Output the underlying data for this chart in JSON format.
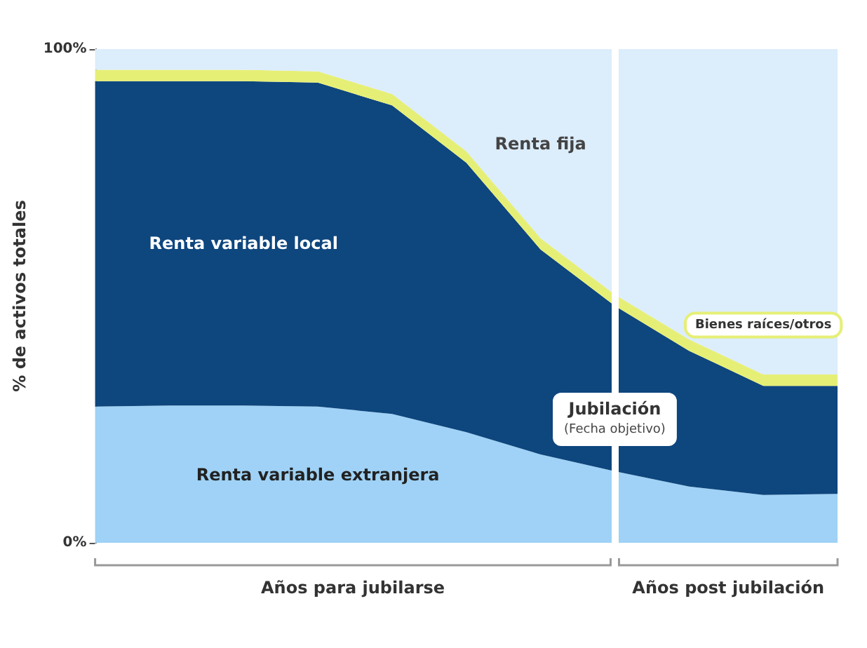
{
  "chart_data": {
    "type": "area",
    "stacked": true,
    "ylabel": "% de activos totales",
    "categories": [
      null,
      null,
      null,
      null,
      null,
      null,
      null,
      null,
      null,
      null,
      null
    ],
    "tick_labels": "y",
    "ylim": [
      0,
      100
    ],
    "yticks": [
      {
        "value": 0,
        "label": "0%"
      },
      {
        "value": 100,
        "label": "100%"
      }
    ],
    "series": [
      {
        "name": "Renta variable extranjera",
        "color": "#9fd2f6",
        "values": [
          27.6,
          27.8,
          27.8,
          27.6,
          26.1,
          22.4,
          17.9,
          14.5,
          11.4,
          9.7,
          9.9
        ]
      },
      {
        "name": "Renta variable local",
        "color": "#0e467e",
        "values": [
          65.9,
          65.7,
          65.7,
          65.6,
          62.5,
          54.6,
          41.5,
          33.5,
          27.5,
          22.1,
          21.9
        ]
      },
      {
        "name": "Bienes raíces/otros",
        "color": "#e6ef75",
        "values": [
          2.3,
          2.3,
          2.3,
          2.3,
          2.3,
          2.3,
          2.3,
          2.3,
          2.3,
          2.3,
          2.3
        ]
      },
      {
        "name": "Renta fija",
        "color": "#dcedfb",
        "values": [
          4.2,
          4.2,
          4.2,
          4.5,
          9.1,
          20.7,
          38.3,
          49.7,
          58.8,
          65.9,
          65.9
        ]
      }
    ],
    "ref_lines": [
      {
        "axis": "x",
        "label": "Jubilación",
        "color": "#ffffff"
      }
    ],
    "annotations": [
      "(Fecha objetivo)",
      "Años para jubilarse",
      "Años post jubilación"
    ],
    "legend": false,
    "grid": false
  }
}
